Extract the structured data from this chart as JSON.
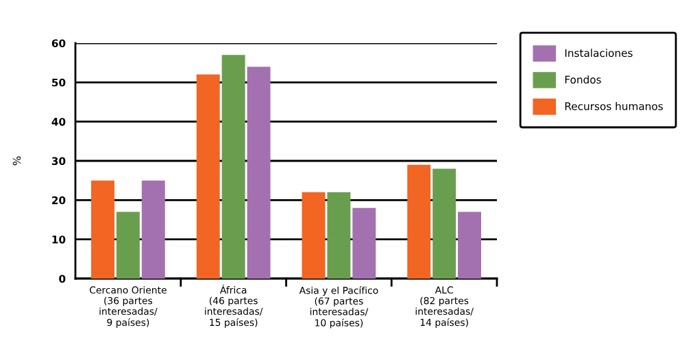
{
  "chart_data": {
    "type": "bar",
    "ylabel": "%",
    "categories": [
      "Cercano Oriente\n(36 partes\ninteresadas/\n9 países)",
      "África\n(46 partes\ninteresadas/\n15 países)",
      "Asia y el Pacífico\n(67 partes\ninteresadas/\n10 países)",
      "ALC\n(82 partes\ninteresadas/\n14 países)"
    ],
    "series": [
      {
        "name": "Recursos humanos",
        "color": "#f26522",
        "values": [
          25,
          52,
          22,
          29
        ]
      },
      {
        "name": "Fondos",
        "color": "#6a9e4f",
        "values": [
          17,
          57,
          22,
          28
        ]
      },
      {
        "name": "Instalaciones",
        "color": "#a471b0",
        "values": [
          25,
          54,
          18,
          17
        ]
      }
    ],
    "ylim": [
      0,
      60
    ],
    "yticks": [
      0,
      10,
      20,
      30,
      40,
      50,
      60
    ],
    "grid": "y",
    "legend": "top right"
  }
}
